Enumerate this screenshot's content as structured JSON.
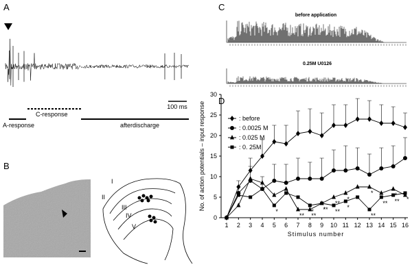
{
  "panel_labels": [
    "A",
    "B",
    "C",
    "D"
  ],
  "panel_a": {
    "scale_bar": "100 ms",
    "a_response": "A-response",
    "c_response": "C-response",
    "afterdischarge": "afterdischarge"
  },
  "panel_b": {
    "layers": [
      "I",
      "II",
      "III",
      "IV",
      "V"
    ]
  },
  "panel_c": {
    "top_title": "before application",
    "bottom_title": "0.25M U0126"
  },
  "chart_data": {
    "type": "line",
    "x_label": "Stimulus number",
    "y_label": "No. of action potentials  –  input response",
    "x": [
      1,
      2,
      3,
      4,
      5,
      6,
      7,
      8,
      9,
      10,
      11,
      12,
      13,
      14,
      15,
      16
    ],
    "xlim": [
      1,
      16
    ],
    "xticks": [
      1,
      2,
      3,
      4,
      5,
      6,
      7,
      8,
      9,
      10,
      11,
      12,
      13,
      14,
      15,
      16
    ],
    "ylim": [
      0,
      30
    ],
    "yticks": [
      0,
      5,
      10,
      15,
      20,
      25,
      30
    ],
    "grid": false,
    "legend": "upper left",
    "series": [
      {
        "name": ": before",
        "marker": "diamond",
        "color": "#000000",
        "values": [
          0,
          7.5,
          11.5,
          15,
          18.5,
          18,
          20.5,
          21,
          20,
          22.5,
          22.5,
          24,
          24,
          23,
          23,
          22
        ],
        "errors": [
          0,
          1.5,
          3,
          4,
          4,
          4.5,
          5.5,
          5.5,
          5.5,
          5,
          5,
          5,
          4.5,
          4.5,
          4,
          3.5
        ]
      },
      {
        "name": ": 0.0025 M",
        "marker": "circle",
        "color": "#000000",
        "values": [
          0,
          6,
          9,
          7,
          9,
          8.5,
          9.5,
          9.5,
          9.5,
          11.5,
          11.5,
          12,
          10.5,
          12,
          12.5,
          14.5
        ],
        "errors": [
          0,
          1.5,
          3.5,
          3,
          4,
          4.5,
          5,
          4,
          5,
          5,
          6,
          5,
          5,
          5,
          5,
          5
        ]
      },
      {
        "name": ": 0.025 M",
        "marker": "triangle",
        "color": "#000000",
        "values": [
          0,
          3,
          9.5,
          8.5,
          5.5,
          7,
          2,
          2,
          3.5,
          5,
          6,
          7.5,
          7.5,
          6,
          7,
          5.5
        ],
        "significance": [
          null,
          null,
          null,
          null,
          null,
          null,
          "**",
          "**",
          "*",
          "**",
          "*",
          null,
          "*",
          null,
          "*",
          null
        ]
      },
      {
        "name": ": 0. 25M",
        "marker": "square",
        "color": "#000000",
        "values": [
          0,
          5.5,
          5,
          7,
          3,
          6,
          5,
          3,
          3.5,
          3,
          4,
          5,
          2,
          5,
          5.5,
          6
        ],
        "significance": [
          null,
          null,
          null,
          null,
          "*",
          null,
          null,
          "*",
          "**",
          "**",
          "*",
          null,
          "**",
          "**",
          "**",
          "*"
        ]
      }
    ]
  }
}
